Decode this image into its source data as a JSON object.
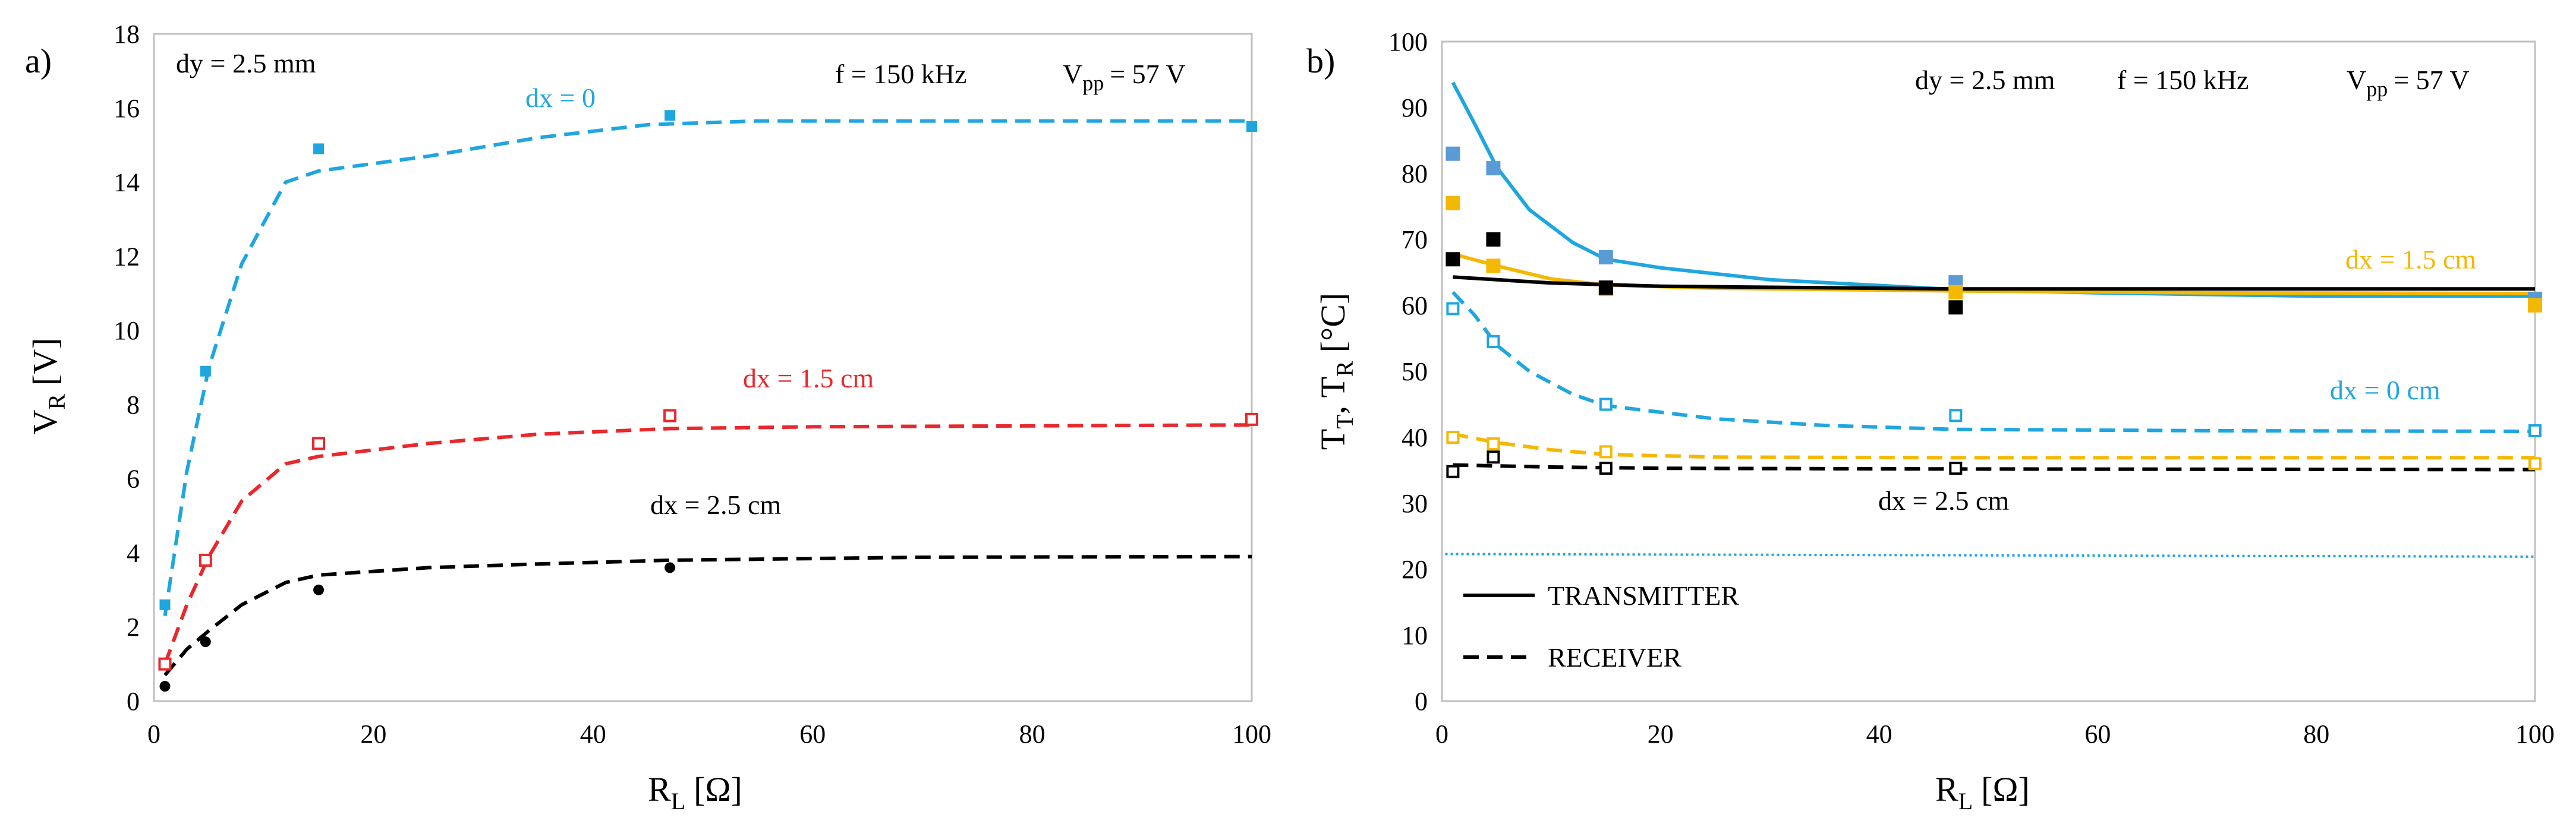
{
  "chart_data": [
    {
      "type": "scatter",
      "panel_label": "a)",
      "xlabel": "R",
      "xlabel_sub": "L",
      "xlabel_unit": "[Ω]",
      "ylabel": "V",
      "ylabel_sub": "R",
      "ylabel_unit": "[V]",
      "xlim": [
        0,
        100
      ],
      "ylim": [
        0,
        18
      ],
      "xticks": [
        "0",
        "20",
        "40",
        "60",
        "80",
        "100"
      ],
      "yticks": [
        "0",
        "2",
        "4",
        "6",
        "8",
        "10",
        "12",
        "14",
        "16",
        "18"
      ],
      "annotations": {
        "dy": "dy = 2.5 mm",
        "freq": "f = 150 kHz",
        "vpp_main": "V",
        "vpp_sub": "pp",
        "vpp_value": "= 57 V"
      },
      "series": [
        {
          "name": "dx = 0",
          "color": "#1fa6e0",
          "marker": "square-filled",
          "line": "dashed",
          "points": [
            [
              1,
              2.6
            ],
            [
              4.7,
              8.9
            ],
            [
              15,
              14.9
            ],
            [
              47,
              15.8
            ],
            [
              100,
              15.5
            ]
          ],
          "fit": [
            [
              1,
              2.3
            ],
            [
              3,
              6.2
            ],
            [
              5,
              9.0
            ],
            [
              8,
              11.8
            ],
            [
              12,
              14.0
            ],
            [
              15,
              14.3
            ],
            [
              25,
              14.7
            ],
            [
              35,
              15.2
            ],
            [
              45,
              15.55
            ],
            [
              55,
              15.65
            ],
            [
              70,
              15.65
            ],
            [
              100,
              15.65
            ]
          ]
        },
        {
          "name": "dx = 1.5 cm",
          "color": "#e8282c",
          "marker": "square-open",
          "line": "dashed",
          "points": [
            [
              1,
              1.0
            ],
            [
              4.7,
              3.8
            ],
            [
              15,
              6.95
            ],
            [
              47,
              7.7
            ],
            [
              100,
              7.6
            ]
          ],
          "fit": [
            [
              1,
              1.0
            ],
            [
              3,
              2.6
            ],
            [
              5,
              3.9
            ],
            [
              8,
              5.4
            ],
            [
              12,
              6.4
            ],
            [
              15,
              6.6
            ],
            [
              25,
              6.95
            ],
            [
              35,
              7.2
            ],
            [
              47,
              7.35
            ],
            [
              60,
              7.4
            ],
            [
              100,
              7.45
            ]
          ]
        },
        {
          "name": "dx = 2.5 cm",
          "color": "#000000",
          "marker": "circle-filled",
          "line": "dashed",
          "points": [
            [
              1,
              0.4
            ],
            [
              4.7,
              1.6
            ],
            [
              15,
              3.0
            ],
            [
              47,
              3.6
            ]
          ],
          "fit": [
            [
              1,
              0.7
            ],
            [
              3,
              1.4
            ],
            [
              5,
              1.9
            ],
            [
              8,
              2.6
            ],
            [
              12,
              3.2
            ],
            [
              15,
              3.4
            ],
            [
              25,
              3.6
            ],
            [
              35,
              3.7
            ],
            [
              47,
              3.8
            ],
            [
              70,
              3.88
            ],
            [
              100,
              3.9
            ]
          ]
        }
      ]
    },
    {
      "type": "scatter",
      "panel_label": "b)",
      "xlabel": "R",
      "xlabel_sub": "L",
      "xlabel_unit": "[Ω]",
      "ylabel_a": "T",
      "ylabel_a_sub": "T",
      "ylabel_b": "T",
      "ylabel_b_sub": "R",
      "ylabel_unit": "[°C]",
      "xlim": [
        0,
        100
      ],
      "ylim": [
        0,
        100
      ],
      "xticks": [
        "0",
        "20",
        "40",
        "60",
        "80",
        "100"
      ],
      "yticks": [
        "0",
        "10",
        "20",
        "30",
        "40",
        "50",
        "60",
        "70",
        "80",
        "90",
        "100"
      ],
      "annotations": {
        "dy": "dy = 2.5 mm",
        "freq": "f = 150 kHz",
        "vpp_main": "V",
        "vpp_sub": "pp",
        "vpp_value": "= 57 V"
      },
      "legend": [
        {
          "label": "TRANSMITTER",
          "line": "solid"
        },
        {
          "label": "RECEIVER",
          "line": "dashed"
        }
      ],
      "labels": {
        "dx15": "dx = 1.5 cm",
        "dx0": "dx = 0 cm",
        "dx25": "dx = 2.5 cm"
      },
      "ambient_line": {
        "color": "#1fa6e0",
        "y_start": 22.3,
        "y_end": 21.9
      },
      "series": [
        {
          "name": "transmitter dx = 0",
          "color": "#1fa6e0",
          "marker_color": "#5b9bd5",
          "marker": "square-filled",
          "line": "solid",
          "points": [
            [
              1,
              83.0
            ],
            [
              4.7,
              80.8
            ],
            [
              15,
              67.3
            ],
            [
              47,
              63.5
            ],
            [
              100,
              61.0
            ]
          ],
          "fit": [
            [
              1,
              93.8
            ],
            [
              3,
              87.5
            ],
            [
              5,
              81.0
            ],
            [
              8,
              74.5
            ],
            [
              12,
              69.5
            ],
            [
              15,
              67.0
            ],
            [
              20,
              65.7
            ],
            [
              30,
              63.9
            ],
            [
              47,
              62.4
            ],
            [
              60,
              61.9
            ],
            [
              80,
              61.4
            ],
            [
              100,
              61.4
            ]
          ]
        },
        {
          "name": "transmitter dx = 1.5 cm",
          "color": "#f5b800",
          "marker": "square-filled",
          "line": "solid",
          "points": [
            [
              1,
              75.5
            ],
            [
              4.7,
              66.0
            ],
            [
              15,
              62.5
            ],
            [
              47,
              62.0
            ],
            [
              100,
              60.0
            ]
          ],
          "fit": [
            [
              1,
              67.8
            ],
            [
              5,
              66.0
            ],
            [
              10,
              64.0
            ],
            [
              15,
              63.1
            ],
            [
              25,
              62.6
            ],
            [
              47,
              62.2
            ],
            [
              70,
              61.9
            ],
            [
              100,
              61.8
            ]
          ]
        },
        {
          "name": "transmitter dx = 2.5 cm",
          "color": "#000000",
          "marker": "square-filled",
          "line": "solid",
          "points": [
            [
              1,
              67.0
            ],
            [
              4.7,
              70.0
            ],
            [
              15,
              62.7
            ],
            [
              47,
              59.7
            ]
          ],
          "fit": [
            [
              1,
              64.3
            ],
            [
              10,
              63.4
            ],
            [
              20,
              62.9
            ],
            [
              47,
              62.5
            ],
            [
              100,
              62.5
            ]
          ]
        },
        {
          "name": "receiver dx = 0",
          "color": "#1fa6e0",
          "marker": "square-open",
          "line": "dashed",
          "points": [
            [
              1,
              59.5
            ],
            [
              4.7,
              54.5
            ],
            [
              15,
              45.0
            ],
            [
              47,
              43.3
            ],
            [
              100,
              41.0
            ]
          ],
          "fit": [
            [
              1,
              62.0
            ],
            [
              3,
              58.5
            ],
            [
              5,
              54.0
            ],
            [
              8,
              50.0
            ],
            [
              12,
              46.5
            ],
            [
              15,
              44.8
            ],
            [
              25,
              42.8
            ],
            [
              35,
              41.8
            ],
            [
              47,
              41.2
            ],
            [
              70,
              41.0
            ],
            [
              100,
              40.9
            ]
          ]
        },
        {
          "name": "receiver dx = 1.5 cm",
          "color": "#f5b800",
          "marker": "square-open",
          "line": "dashed",
          "points": [
            [
              1,
              40.0
            ],
            [
              4.7,
              39.0
            ],
            [
              15,
              37.8
            ],
            [
              100,
              36.0
            ]
          ],
          "fit": [
            [
              1,
              40.5
            ],
            [
              5,
              39.2
            ],
            [
              10,
              38.1
            ],
            [
              15,
              37.4
            ],
            [
              25,
              37.0
            ],
            [
              47,
              36.9
            ],
            [
              100,
              36.9
            ]
          ]
        },
        {
          "name": "receiver dx = 2.5 cm",
          "color": "#000000",
          "marker": "square-open",
          "line": "dashed",
          "points": [
            [
              1,
              34.8
            ],
            [
              4.7,
              37.0
            ],
            [
              15,
              35.3
            ],
            [
              47,
              35.3
            ]
          ],
          "fit": [
            [
              1,
              35.8
            ],
            [
              10,
              35.5
            ],
            [
              20,
              35.3
            ],
            [
              47,
              35.2
            ],
            [
              100,
              35.1
            ]
          ]
        }
      ]
    }
  ]
}
